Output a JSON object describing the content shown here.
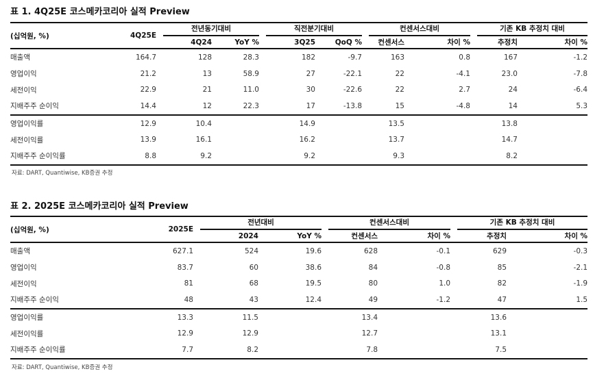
{
  "table1": {
    "title": "표 1. 4Q25E 코스메카코리아 실적 Preview",
    "unit": "(십억원, %)",
    "main_col": "4Q25E",
    "groups": [
      "전년동기대비",
      "직전분기대비",
      "컨센서스대비",
      "기존 KB 추정치 대비"
    ],
    "subcols": [
      "4Q24",
      "YoY %",
      "3Q25",
      "QoQ %",
      "컨센서스",
      "차이 %",
      "추정치",
      "차이 %"
    ],
    "rows": [
      [
        "매출액",
        "164.7",
        "128",
        "28.3",
        "182",
        "-9.7",
        "163",
        "0.8",
        "167",
        "-1.2"
      ],
      [
        "영업이익",
        "21.2",
        "13",
        "58.9",
        "27",
        "-22.1",
        "22",
        "-4.1",
        "23.0",
        "-7.8"
      ],
      [
        "세전이익",
        "22.9",
        "21",
        "11.0",
        "30",
        "-22.6",
        "22",
        "2.7",
        "24",
        "-6.4"
      ],
      [
        "지배주주 순이익",
        "14.4",
        "12",
        "22.3",
        "17",
        "-13.8",
        "15",
        "-4.8",
        "14",
        "5.3"
      ],
      [
        "영업이익률",
        "12.9",
        "10.4",
        "",
        "14.9",
        "",
        "13.5",
        "",
        "13.8",
        ""
      ],
      [
        "세전이익률",
        "13.9",
        "16.1",
        "",
        "16.2",
        "",
        "13.7",
        "",
        "14.7",
        ""
      ],
      [
        "지배주주 순이익률",
        "8.8",
        "9.2",
        "",
        "9.2",
        "",
        "9.3",
        "",
        "8.2",
        ""
      ]
    ],
    "source": "자료: DART, Quantiwise, KB증권 추정"
  },
  "table2": {
    "title": "표 2. 2025E 코스메카코리아 실적 Preview",
    "unit": "(십억원, %)",
    "main_col": "2025E",
    "groups": [
      "전년대비",
      "컨센서스대비",
      "기존 KB 추정치 대비"
    ],
    "subcols": [
      "2024",
      "YoY %",
      "컨센서스",
      "차이 %",
      "추정치",
      "차이 %"
    ],
    "rows": [
      [
        "매출액",
        "627.1",
        "524",
        "19.6",
        "628",
        "-0.1",
        "629",
        "-0.3"
      ],
      [
        "영업이익",
        "83.7",
        "60",
        "38.6",
        "84",
        "-0.8",
        "85",
        "-2.1"
      ],
      [
        "세전이익",
        "81",
        "68",
        "19.5",
        "80",
        "1.0",
        "82",
        "-1.9"
      ],
      [
        "지배주주 순이익",
        "48",
        "43",
        "12.4",
        "49",
        "-1.2",
        "47",
        "1.5"
      ],
      [
        "영업이익률",
        "13.3",
        "11.5",
        "",
        "13.4",
        "",
        "13.6",
        ""
      ],
      [
        "세전이익률",
        "12.9",
        "12.9",
        "",
        "12.7",
        "",
        "13.1",
        ""
      ],
      [
        "지배주주 순이익률",
        "7.7",
        "8.2",
        "",
        "7.8",
        "",
        "7.5",
        ""
      ]
    ],
    "source": "자료: DART, Quantiwise, KB증권 추정"
  }
}
